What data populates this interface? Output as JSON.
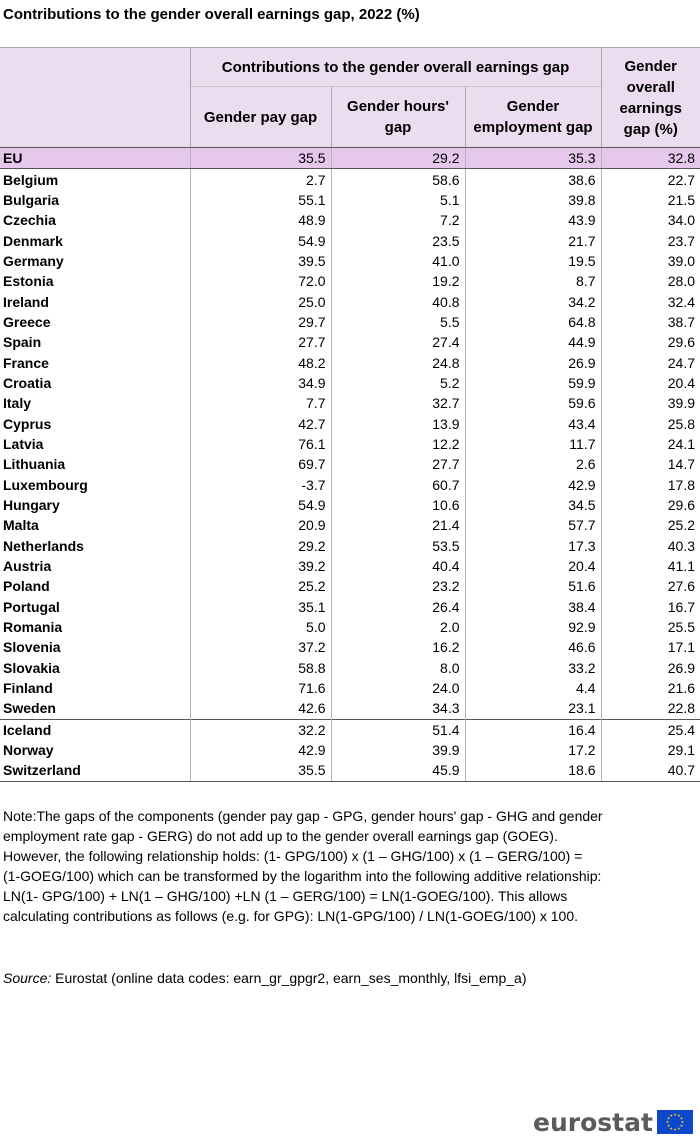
{
  "title": "Contributions to the gender overall earnings gap, 2022 (%)",
  "table": {
    "group_header": "Contributions to the gender overall earnings gap",
    "columns": [
      "Gender pay gap",
      "Gender hours' gap",
      "Gender employment gap",
      "Gender overall earnings gap (%)"
    ],
    "rows": [
      {
        "country": "EU",
        "values": [
          "35.5",
          "29.2",
          "35.3",
          "32.8"
        ]
      },
      {
        "country": "Belgium",
        "values": [
          "2.7",
          "58.6",
          "38.6",
          "22.7"
        ]
      },
      {
        "country": "Bulgaria",
        "values": [
          "55.1",
          "5.1",
          "39.8",
          "21.5"
        ]
      },
      {
        "country": "Czechia",
        "values": [
          "48.9",
          "7.2",
          "43.9",
          "34.0"
        ]
      },
      {
        "country": "Denmark",
        "values": [
          "54.9",
          "23.5",
          "21.7",
          "23.7"
        ]
      },
      {
        "country": "Germany",
        "values": [
          "39.5",
          "41.0",
          "19.5",
          "39.0"
        ]
      },
      {
        "country": "Estonia",
        "values": [
          "72.0",
          "19.2",
          "8.7",
          "28.0"
        ]
      },
      {
        "country": "Ireland",
        "values": [
          "25.0",
          "40.8",
          "34.2",
          "32.4"
        ]
      },
      {
        "country": "Greece",
        "values": [
          "29.7",
          "5.5",
          "64.8",
          "38.7"
        ]
      },
      {
        "country": "Spain",
        "values": [
          "27.7",
          "27.4",
          "44.9",
          "29.6"
        ]
      },
      {
        "country": "France",
        "values": [
          "48.2",
          "24.8",
          "26.9",
          "24.7"
        ]
      },
      {
        "country": "Croatia",
        "values": [
          "34.9",
          "5.2",
          "59.9",
          "20.4"
        ]
      },
      {
        "country": "Italy",
        "values": [
          "7.7",
          "32.7",
          "59.6",
          "39.9"
        ]
      },
      {
        "country": "Cyprus",
        "values": [
          "42.7",
          "13.9",
          "43.4",
          "25.8"
        ]
      },
      {
        "country": "Latvia",
        "values": [
          "76.1",
          "12.2",
          "11.7",
          "24.1"
        ]
      },
      {
        "country": "Lithuania",
        "values": [
          "69.7",
          "27.7",
          "2.6",
          "14.7"
        ]
      },
      {
        "country": "Luxembourg",
        "values": [
          "-3.7",
          "60.7",
          "42.9",
          "17.8"
        ]
      },
      {
        "country": "Hungary",
        "values": [
          "54.9",
          "10.6",
          "34.5",
          "29.6"
        ]
      },
      {
        "country": "Malta",
        "values": [
          "20.9",
          "21.4",
          "57.7",
          "25.2"
        ]
      },
      {
        "country": "Netherlands",
        "values": [
          "29.2",
          "53.5",
          "17.3",
          "40.3"
        ]
      },
      {
        "country": "Austria",
        "values": [
          "39.2",
          "40.4",
          "20.4",
          "41.1"
        ]
      },
      {
        "country": "Poland",
        "values": [
          "25.2",
          "23.2",
          "51.6",
          "27.6"
        ]
      },
      {
        "country": "Portugal",
        "values": [
          "35.1",
          "26.4",
          "38.4",
          "16.7"
        ]
      },
      {
        "country": "Romania",
        "values": [
          "5.0",
          "2.0",
          "92.9",
          "25.5"
        ]
      },
      {
        "country": "Slovenia",
        "values": [
          "37.2",
          "16.2",
          "46.6",
          "17.1"
        ]
      },
      {
        "country": "Slovakia",
        "values": [
          "58.8",
          "8.0",
          "33.2",
          "26.9"
        ]
      },
      {
        "country": "Finland",
        "values": [
          "71.6",
          "24.0",
          "4.4",
          "21.6"
        ]
      },
      {
        "country": "Sweden",
        "values": [
          "42.6",
          "34.3",
          "23.1",
          "22.8"
        ]
      },
      {
        "country": "Iceland",
        "values": [
          "32.2",
          "51.4",
          "16.4",
          "25.4"
        ]
      },
      {
        "country": "Norway",
        "values": [
          "42.9",
          "39.9",
          "17.2",
          "29.1"
        ]
      },
      {
        "country": "Switzerland",
        "values": [
          "35.5",
          "45.9",
          "18.6",
          "40.7"
        ]
      }
    ]
  },
  "note": "Note:The gaps of the components (gender pay gap - GPG, gender hours' gap - GHG and gender employment rate gap - GERG) do not add up to the gender overall earnings gap (GOEG). However, the following relationship holds: (1- GPG/100)  x  (1 – GHG/100) x (1 – GERG/100) = (1-GOEG/100) which can be transformed by the logarithm into the following additive relationship: LN(1- GPG/100) + LN(1 – GHG/100) +LN (1 – GERG/100) = LN(1-GOEG/100). This allows calculating contributions as follows (e.g. for GPG): LN(1-GPG/100) / LN(1-GOEG/100) x 100.",
  "source": {
    "label": "Source:",
    "text": "Eurostat (online data codes: earn_gr_gpgr2, earn_ses_monthly, lfsi_emp_a)"
  },
  "logo": {
    "text": "eurostat",
    "flag_icon": "eu-flag-icon",
    "flag_color": "#0e47cb",
    "star_color": "#ffdd00"
  },
  "colors": {
    "header_bg": "#ecdcef",
    "eu_row_bg": "#e5c8eb"
  },
  "chart_data": {
    "type": "table",
    "title": "Contributions to the gender overall earnings gap, 2022 (%)",
    "column_group": "Contributions to the gender overall earnings gap",
    "columns": [
      "Gender pay gap",
      "Gender hours' gap",
      "Gender employment gap",
      "Gender overall earnings gap (%)"
    ],
    "row_labels": [
      "EU",
      "Belgium",
      "Bulgaria",
      "Czechia",
      "Denmark",
      "Germany",
      "Estonia",
      "Ireland",
      "Greece",
      "Spain",
      "France",
      "Croatia",
      "Italy",
      "Cyprus",
      "Latvia",
      "Lithuania",
      "Luxembourg",
      "Hungary",
      "Malta",
      "Netherlands",
      "Austria",
      "Poland",
      "Portugal",
      "Romania",
      "Slovenia",
      "Slovakia",
      "Finland",
      "Sweden",
      "Iceland",
      "Norway",
      "Switzerland"
    ],
    "values": [
      [
        35.5,
        29.2,
        35.3,
        32.8
      ],
      [
        2.7,
        58.6,
        38.6,
        22.7
      ],
      [
        55.1,
        5.1,
        39.8,
        21.5
      ],
      [
        48.9,
        7.2,
        43.9,
        34.0
      ],
      [
        54.9,
        23.5,
        21.7,
        23.7
      ],
      [
        39.5,
        41.0,
        19.5,
        39.0
      ],
      [
        72.0,
        19.2,
        8.7,
        28.0
      ],
      [
        25.0,
        40.8,
        34.2,
        32.4
      ],
      [
        29.7,
        5.5,
        64.8,
        38.7
      ],
      [
        27.7,
        27.4,
        44.9,
        29.6
      ],
      [
        48.2,
        24.8,
        26.9,
        24.7
      ],
      [
        34.9,
        5.2,
        59.9,
        20.4
      ],
      [
        7.7,
        32.7,
        59.6,
        39.9
      ],
      [
        42.7,
        13.9,
        43.4,
        25.8
      ],
      [
        76.1,
        12.2,
        11.7,
        24.1
      ],
      [
        69.7,
        27.7,
        2.6,
        14.7
      ],
      [
        -3.7,
        60.7,
        42.9,
        17.8
      ],
      [
        54.9,
        10.6,
        34.5,
        29.6
      ],
      [
        20.9,
        21.4,
        57.7,
        25.2
      ],
      [
        29.2,
        53.5,
        17.3,
        40.3
      ],
      [
        39.2,
        40.4,
        20.4,
        41.1
      ],
      [
        25.2,
        23.2,
        51.6,
        27.6
      ],
      [
        35.1,
        26.4,
        38.4,
        16.7
      ],
      [
        5.0,
        2.0,
        92.9,
        25.5
      ],
      [
        37.2,
        16.2,
        46.6,
        17.1
      ],
      [
        58.8,
        8.0,
        33.2,
        26.9
      ],
      [
        71.6,
        24.0,
        4.4,
        21.6
      ],
      [
        42.6,
        34.3,
        23.1,
        22.8
      ],
      [
        32.2,
        51.4,
        16.4,
        25.4
      ],
      [
        42.9,
        39.9,
        17.2,
        29.1
      ],
      [
        35.5,
        45.9,
        18.6,
        40.7
      ]
    ]
  }
}
